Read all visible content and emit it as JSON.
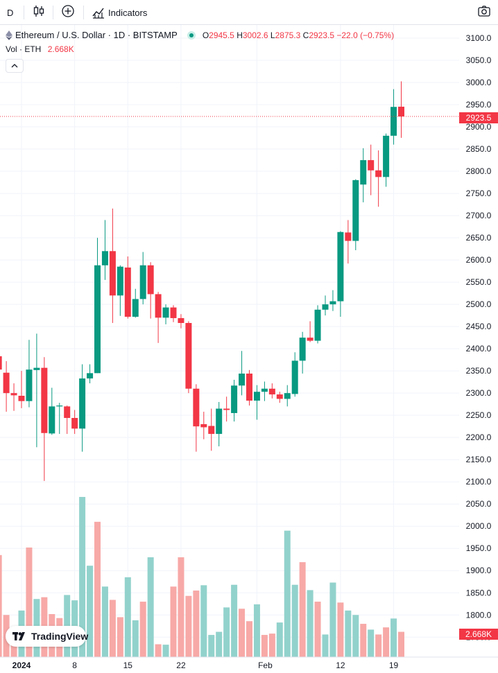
{
  "toolbar": {
    "interval": "D",
    "indicators_label": "Indicators",
    "icons": [
      "candles-icon",
      "plus-circle-icon",
      "indicators-icon",
      "camera-icon"
    ]
  },
  "legend": {
    "symbol": "Ethereum / U.S. Dollar · 1D · BITSTAMP",
    "open_key": "O",
    "open": "2945.5",
    "high_key": "H",
    "high": "3002.6",
    "low_key": "L",
    "low": "2875.3",
    "close_key": "C",
    "close": "2923.5",
    "change": "−22.0 (−0.75%)",
    "volume_label": "Vol · ETH",
    "volume_value": "2.668K"
  },
  "price_tags": {
    "last_price": "2923.5",
    "last_volume": "2.668K"
  },
  "logo": {
    "text": "TradingView"
  },
  "colors": {
    "up": "#089981",
    "down": "#f23645",
    "up_volume": "#92d2cc",
    "down_volume": "#f7a9a7",
    "grid": "#f0f3fa"
  },
  "chart_data": {
    "type": "candlestick",
    "y_axis_ticks": [
      "3100.0",
      "3050.0",
      "3000.0",
      "2950.0",
      "2900.0",
      "2850.0",
      "2800.0",
      "2750.0",
      "2700.0",
      "2650.0",
      "2600.0",
      "2550.0",
      "2500.0",
      "2450.0",
      "2400.0",
      "2350.0",
      "2300.0",
      "2250.0",
      "2200.0",
      "2150.0",
      "2100.0",
      "2050.0",
      "2000.0",
      "1950.0",
      "1900.0",
      "1850.0",
      "1800.0",
      "1750.0"
    ],
    "ylim": [
      1710,
      3135
    ],
    "x_axis_ticks": [
      {
        "label": "2024",
        "date": "2024-01-01"
      },
      {
        "label": "8",
        "date": "2024-01-08"
      },
      {
        "label": "15",
        "date": "2024-01-15"
      },
      {
        "label": "22",
        "date": "2024-01-22"
      },
      {
        "label": "Feb",
        "date": "2024-02-01"
      },
      {
        "label": "12",
        "date": "2024-02-12"
      },
      {
        "label": "19",
        "date": "2024-02-19"
      }
    ],
    "candles": [
      {
        "date": "2023-12-29",
        "o": 2383,
        "h": 2440,
        "l": 2308,
        "c": 2353
      },
      {
        "date": "2023-12-30",
        "o": 2346,
        "h": 2372,
        "l": 2258,
        "c": 2300
      },
      {
        "date": "2023-12-31",
        "o": 2300,
        "h": 2322,
        "l": 2260,
        "c": 2295
      },
      {
        "date": "2024-01-01",
        "o": 2294,
        "h": 2350,
        "l": 2266,
        "c": 2282
      },
      {
        "date": "2024-01-02",
        "o": 2282,
        "h": 2420,
        "l": 2268,
        "c": 2353
      },
      {
        "date": "2024-01-03",
        "o": 2352,
        "h": 2434,
        "l": 2178,
        "c": 2357
      },
      {
        "date": "2024-01-04",
        "o": 2357,
        "h": 2381,
        "l": 2102,
        "c": 2210
      },
      {
        "date": "2024-01-05",
        "o": 2209,
        "h": 2312,
        "l": 2206,
        "c": 2270
      },
      {
        "date": "2024-01-06",
        "o": 2270,
        "h": 2278,
        "l": 2208,
        "c": 2272
      },
      {
        "date": "2024-01-07",
        "o": 2270,
        "h": 2272,
        "l": 2208,
        "c": 2244
      },
      {
        "date": "2024-01-08",
        "o": 2244,
        "h": 2262,
        "l": 2208,
        "c": 2220
      },
      {
        "date": "2024-01-09",
        "o": 2220,
        "h": 2365,
        "l": 2168,
        "c": 2333
      },
      {
        "date": "2024-01-10",
        "o": 2333,
        "h": 2365,
        "l": 2322,
        "c": 2345
      },
      {
        "date": "2024-01-11",
        "o": 2345,
        "h": 2650,
        "l": 2345,
        "c": 2588
      },
      {
        "date": "2024-01-12",
        "o": 2588,
        "h": 2690,
        "l": 2555,
        "c": 2620
      },
      {
        "date": "2024-01-13",
        "o": 2620,
        "h": 2716,
        "l": 2458,
        "c": 2520
      },
      {
        "date": "2024-01-14",
        "o": 2520,
        "h": 2588,
        "l": 2474,
        "c": 2585
      },
      {
        "date": "2024-01-15",
        "o": 2583,
        "h": 2608,
        "l": 2468,
        "c": 2472
      },
      {
        "date": "2024-01-16",
        "o": 2472,
        "h": 2535,
        "l": 2470,
        "c": 2512
      },
      {
        "date": "2024-01-17",
        "o": 2512,
        "h": 2618,
        "l": 2500,
        "c": 2588
      },
      {
        "date": "2024-01-18",
        "o": 2588,
        "h": 2595,
        "l": 2468,
        "c": 2523
      },
      {
        "date": "2024-01-19",
        "o": 2523,
        "h": 2528,
        "l": 2413,
        "c": 2470
      },
      {
        "date": "2024-01-20",
        "o": 2470,
        "h": 2500,
        "l": 2455,
        "c": 2493
      },
      {
        "date": "2024-01-21",
        "o": 2493,
        "h": 2498,
        "l": 2460,
        "c": 2469
      },
      {
        "date": "2024-01-22",
        "o": 2469,
        "h": 2478,
        "l": 2446,
        "c": 2458
      },
      {
        "date": "2024-01-23",
        "o": 2458,
        "h": 2462,
        "l": 2300,
        "c": 2310
      },
      {
        "date": "2024-01-24",
        "o": 2310,
        "h": 2320,
        "l": 2168,
        "c": 2225
      },
      {
        "date": "2024-01-25",
        "o": 2230,
        "h": 2258,
        "l": 2196,
        "c": 2223
      },
      {
        "date": "2024-01-26",
        "o": 2226,
        "h": 2265,
        "l": 2170,
        "c": 2208
      },
      {
        "date": "2024-01-27",
        "o": 2208,
        "h": 2280,
        "l": 2180,
        "c": 2265
      },
      {
        "date": "2024-01-28",
        "o": 2265,
        "h": 2292,
        "l": 2236,
        "c": 2262
      },
      {
        "date": "2024-01-29",
        "o": 2255,
        "h": 2330,
        "l": 2236,
        "c": 2317
      },
      {
        "date": "2024-01-30",
        "o": 2317,
        "h": 2395,
        "l": 2295,
        "c": 2344
      },
      {
        "date": "2024-01-31",
        "o": 2344,
        "h": 2352,
        "l": 2272,
        "c": 2283
      },
      {
        "date": "2024-02-01",
        "o": 2283,
        "h": 2318,
        "l": 2240,
        "c": 2303
      },
      {
        "date": "2024-02-02",
        "o": 2303,
        "h": 2326,
        "l": 2282,
        "c": 2310
      },
      {
        "date": "2024-02-03",
        "o": 2310,
        "h": 2322,
        "l": 2288,
        "c": 2297
      },
      {
        "date": "2024-02-04",
        "o": 2297,
        "h": 2303,
        "l": 2278,
        "c": 2287
      },
      {
        "date": "2024-02-05",
        "o": 2287,
        "h": 2318,
        "l": 2270,
        "c": 2300
      },
      {
        "date": "2024-02-06",
        "o": 2298,
        "h": 2392,
        "l": 2292,
        "c": 2373
      },
      {
        "date": "2024-02-07",
        "o": 2373,
        "h": 2438,
        "l": 2344,
        "c": 2425
      },
      {
        "date": "2024-02-08",
        "o": 2425,
        "h": 2462,
        "l": 2415,
        "c": 2418
      },
      {
        "date": "2024-02-09",
        "o": 2418,
        "h": 2498,
        "l": 2412,
        "c": 2488
      },
      {
        "date": "2024-02-10",
        "o": 2488,
        "h": 2520,
        "l": 2475,
        "c": 2500
      },
      {
        "date": "2024-02-11",
        "o": 2500,
        "h": 2532,
        "l": 2485,
        "c": 2507
      },
      {
        "date": "2024-02-12",
        "o": 2507,
        "h": 2665,
        "l": 2472,
        "c": 2663
      },
      {
        "date": "2024-02-13",
        "o": 2662,
        "h": 2690,
        "l": 2592,
        "c": 2643
      },
      {
        "date": "2024-02-14",
        "o": 2643,
        "h": 2782,
        "l": 2622,
        "c": 2780
      },
      {
        "date": "2024-02-15",
        "o": 2770,
        "h": 2852,
        "l": 2730,
        "c": 2825
      },
      {
        "date": "2024-02-16",
        "o": 2825,
        "h": 2860,
        "l": 2746,
        "c": 2802
      },
      {
        "date": "2024-02-17",
        "o": 2802,
        "h": 2847,
        "l": 2720,
        "c": 2787
      },
      {
        "date": "2024-02-18",
        "o": 2787,
        "h": 2885,
        "l": 2765,
        "c": 2880
      },
      {
        "date": "2024-02-19",
        "o": 2880,
        "h": 2985,
        "l": 2860,
        "c": 2945
      },
      {
        "date": "2024-02-20",
        "o": 2945.5,
        "h": 3002.6,
        "l": 2875.3,
        "c": 2923.5
      }
    ],
    "volume": {
      "axis": "price scale",
      "bars": [
        {
          "up": false,
          "top": 1935
        },
        {
          "up": false,
          "top": 1800
        },
        {
          "up": false,
          "top": 1770
        },
        {
          "up": true,
          "top": 1810
        },
        {
          "up": false,
          "top": 1952
        },
        {
          "up": true,
          "top": 1836
        },
        {
          "up": false,
          "top": 1840
        },
        {
          "up": false,
          "top": 1802
        },
        {
          "up": false,
          "top": 1793
        },
        {
          "up": true,
          "top": 1845
        },
        {
          "up": true,
          "top": 1833
        },
        {
          "up": true,
          "top": 2066
        },
        {
          "up": true,
          "top": 1911
        },
        {
          "up": false,
          "top": 2010
        },
        {
          "up": true,
          "top": 1864
        },
        {
          "up": false,
          "top": 1834
        },
        {
          "up": false,
          "top": 1795
        },
        {
          "up": true,
          "top": 1885
        },
        {
          "up": true,
          "top": 1788
        },
        {
          "up": false,
          "top": 1830
        },
        {
          "up": true,
          "top": 1930
        },
        {
          "up": false,
          "top": 1734
        },
        {
          "up": true,
          "top": 1733
        },
        {
          "up": false,
          "top": 1864
        },
        {
          "up": false,
          "top": 1930
        },
        {
          "up": false,
          "top": 1843
        },
        {
          "up": false,
          "top": 1855
        },
        {
          "up": true,
          "top": 1867
        },
        {
          "up": true,
          "top": 1755
        },
        {
          "up": true,
          "top": 1762
        },
        {
          "up": true,
          "top": 1817
        },
        {
          "up": true,
          "top": 1868
        },
        {
          "up": false,
          "top": 1814
        },
        {
          "up": false,
          "top": 1786
        },
        {
          "up": true,
          "top": 1824
        },
        {
          "up": false,
          "top": 1755
        },
        {
          "up": false,
          "top": 1758
        },
        {
          "up": true,
          "top": 1783
        },
        {
          "up": true,
          "top": 1990
        },
        {
          "up": true,
          "top": 1868
        },
        {
          "up": false,
          "top": 1919
        },
        {
          "up": true,
          "top": 1856
        },
        {
          "up": false,
          "top": 1830
        },
        {
          "up": true,
          "top": 1756
        },
        {
          "up": true,
          "top": 1873
        },
        {
          "up": false,
          "top": 1828
        },
        {
          "up": true,
          "top": 1810
        },
        {
          "up": true,
          "top": 1800
        },
        {
          "up": false,
          "top": 1780
        },
        {
          "up": true,
          "top": 1767
        },
        {
          "up": false,
          "top": 1756
        },
        {
          "up": false,
          "top": 1772
        },
        {
          "up": true,
          "top": 1792
        },
        {
          "up": false,
          "top": 1762
        }
      ]
    }
  }
}
